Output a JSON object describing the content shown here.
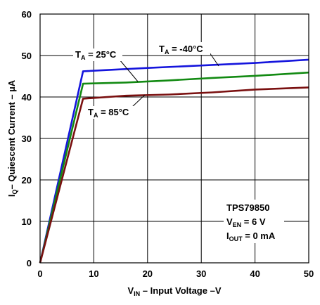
{
  "chart_data": {
    "type": "line",
    "x_ticks": [
      0,
      10,
      20,
      30,
      40,
      50
    ],
    "y_ticks": [
      0,
      10,
      20,
      30,
      40,
      50,
      60
    ],
    "xlim": [
      0,
      50
    ],
    "ylim": [
      0,
      60
    ],
    "grid": true,
    "xlabel": {
      "main": "V",
      "sub": "IN",
      "rest": " – Input Voltage –V"
    },
    "ylabel": {
      "main": "I",
      "sub": "Q",
      "rest": "– Quiescent Current – µA"
    },
    "series": [
      {
        "name": {
          "main": "T",
          "sub": "A",
          "rest": " = -40°C"
        },
        "color": "#1515dd",
        "points": [
          [
            0,
            0
          ],
          [
            8,
            46.2
          ],
          [
            20,
            47
          ],
          [
            30,
            47.6
          ],
          [
            40,
            48.2
          ],
          [
            50,
            49
          ]
        ]
      },
      {
        "name": {
          "main": "T",
          "sub": "A",
          "rest": " = 25°C"
        },
        "color": "#128a12",
        "points": [
          [
            0,
            0
          ],
          [
            8,
            43.2
          ],
          [
            16,
            43.5
          ],
          [
            24,
            44
          ],
          [
            32,
            44.6
          ],
          [
            40,
            45.1
          ],
          [
            50,
            45.9
          ]
        ]
      },
      {
        "name": {
          "main": "T",
          "sub": "A",
          "rest": " = 85°C"
        },
        "color": "#7a1010",
        "points": [
          [
            0,
            0
          ],
          [
            8,
            39.6
          ],
          [
            16,
            40.3
          ],
          [
            24,
            40.6
          ],
          [
            32,
            41.1
          ],
          [
            40,
            41.8
          ],
          [
            50,
            42.3
          ]
        ]
      }
    ],
    "info_box": [
      {
        "main": "TPS79850",
        "sub": "",
        "rest": ""
      },
      {
        "main": "V",
        "sub": "EN",
        "rest": " = 6 V"
      },
      {
        "main": "I",
        "sub": "OUT",
        "rest": " = 0 mA"
      }
    ]
  }
}
